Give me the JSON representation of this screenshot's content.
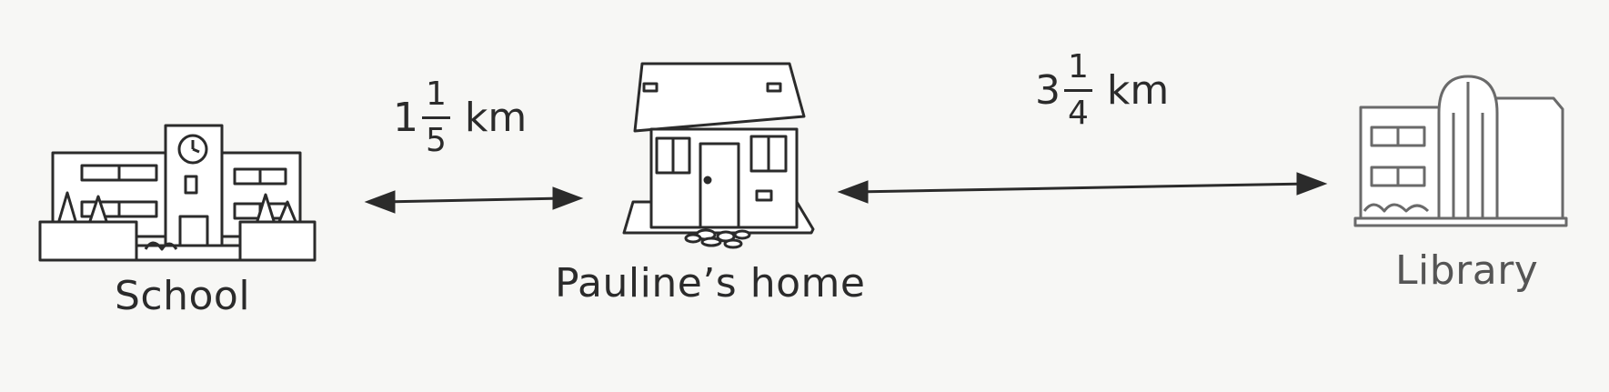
{
  "places": {
    "school": {
      "label": "School",
      "icon": "school-building-icon"
    },
    "home": {
      "label": "Pauline’s home",
      "icon": "house-icon"
    },
    "library": {
      "label": "Library",
      "icon": "library-building-icon"
    }
  },
  "distances": {
    "school_to_home": {
      "whole": "1",
      "numerator": "1",
      "denominator": "5",
      "unit": "km"
    },
    "home_to_library": {
      "whole": "3",
      "numerator": "1",
      "denominator": "4",
      "unit": "km"
    }
  },
  "colors": {
    "ink": "#2b2b2b",
    "paper": "#f7f7f5",
    "faded_ink": "#6a6a6a"
  }
}
